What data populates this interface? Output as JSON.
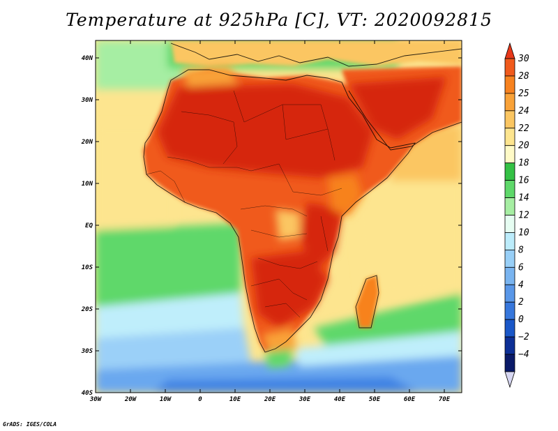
{
  "title": "Temperature at 925hPa [C], VT: 2020092815",
  "credit": "GrADS: IGES/COLA",
  "axes": {
    "lon_ticks": [
      "30W",
      "20W",
      "10W",
      "0",
      "10E",
      "20E",
      "30E",
      "40E",
      "50E",
      "60E",
      "70E"
    ],
    "lat_ticks": [
      "40N",
      "30N",
      "20N",
      "10N",
      "EQ",
      "10S",
      "20S",
      "30S",
      "40S"
    ]
  },
  "colorbar": {
    "labels": [
      "30",
      "28",
      "25",
      "24",
      "22",
      "20",
      "18",
      "16",
      "14",
      "12",
      "10",
      "8",
      "6",
      "4",
      "2",
      "0",
      "−2",
      "−4"
    ],
    "colors": [
      "#e8381a",
      "#f05a1c",
      "#f7821f",
      "#f9a238",
      "#fbc662",
      "#fde58f",
      "#fffac7",
      "#34c145",
      "#5ed86a",
      "#a6eea3",
      "#e6fdf2",
      "#bcecfb",
      "#98cff7",
      "#79b4f0",
      "#5997e8",
      "#3777dc",
      "#1a57c8",
      "#0d2f96",
      "#0a1a68",
      "#d7d7f2"
    ]
  },
  "map": {
    "region": "Africa",
    "colors": {
      "ocean_cold_deep": "#3f83e4",
      "ocean_cold": "#6aa8ef",
      "ocean_cool": "#9bd0f8",
      "ocean_mild": "#bfeefb",
      "ocean_green": "#5ed86a",
      "ocean_warm": "#fde58f",
      "land_hot": "#d6250f",
      "land_warm": "#f05a1c",
      "land_orange": "#f7821f",
      "highland": "#fbc662"
    }
  }
}
